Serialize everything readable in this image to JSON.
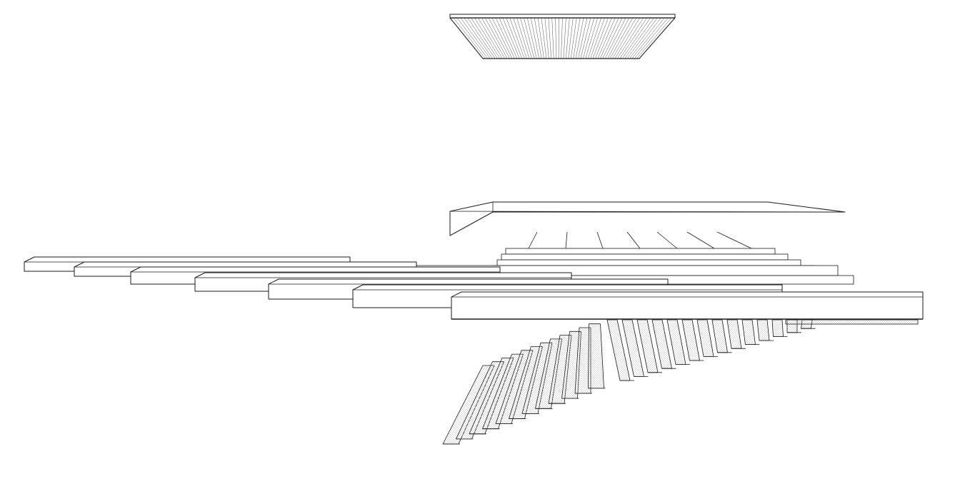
{
  "drawing": {
    "style": "exploded axonometric line drawing",
    "stroke_color": "#1a1a1a",
    "fill_color": "#ffffff",
    "hatch_color": "#9a9a9a"
  },
  "components": {
    "ceiling_baffle_panel": {
      "fins": 64
    },
    "canopy_plate": {},
    "connector_rods": {
      "count": 7
    },
    "stepped_upper_tiers": {
      "count": 6
    },
    "cantilever_slabs": {
      "count": 7
    },
    "descending_stair_treads": {
      "count": 14
    },
    "ascending_stair_treads": {
      "count": 12
    },
    "stair_base_rail": {}
  }
}
